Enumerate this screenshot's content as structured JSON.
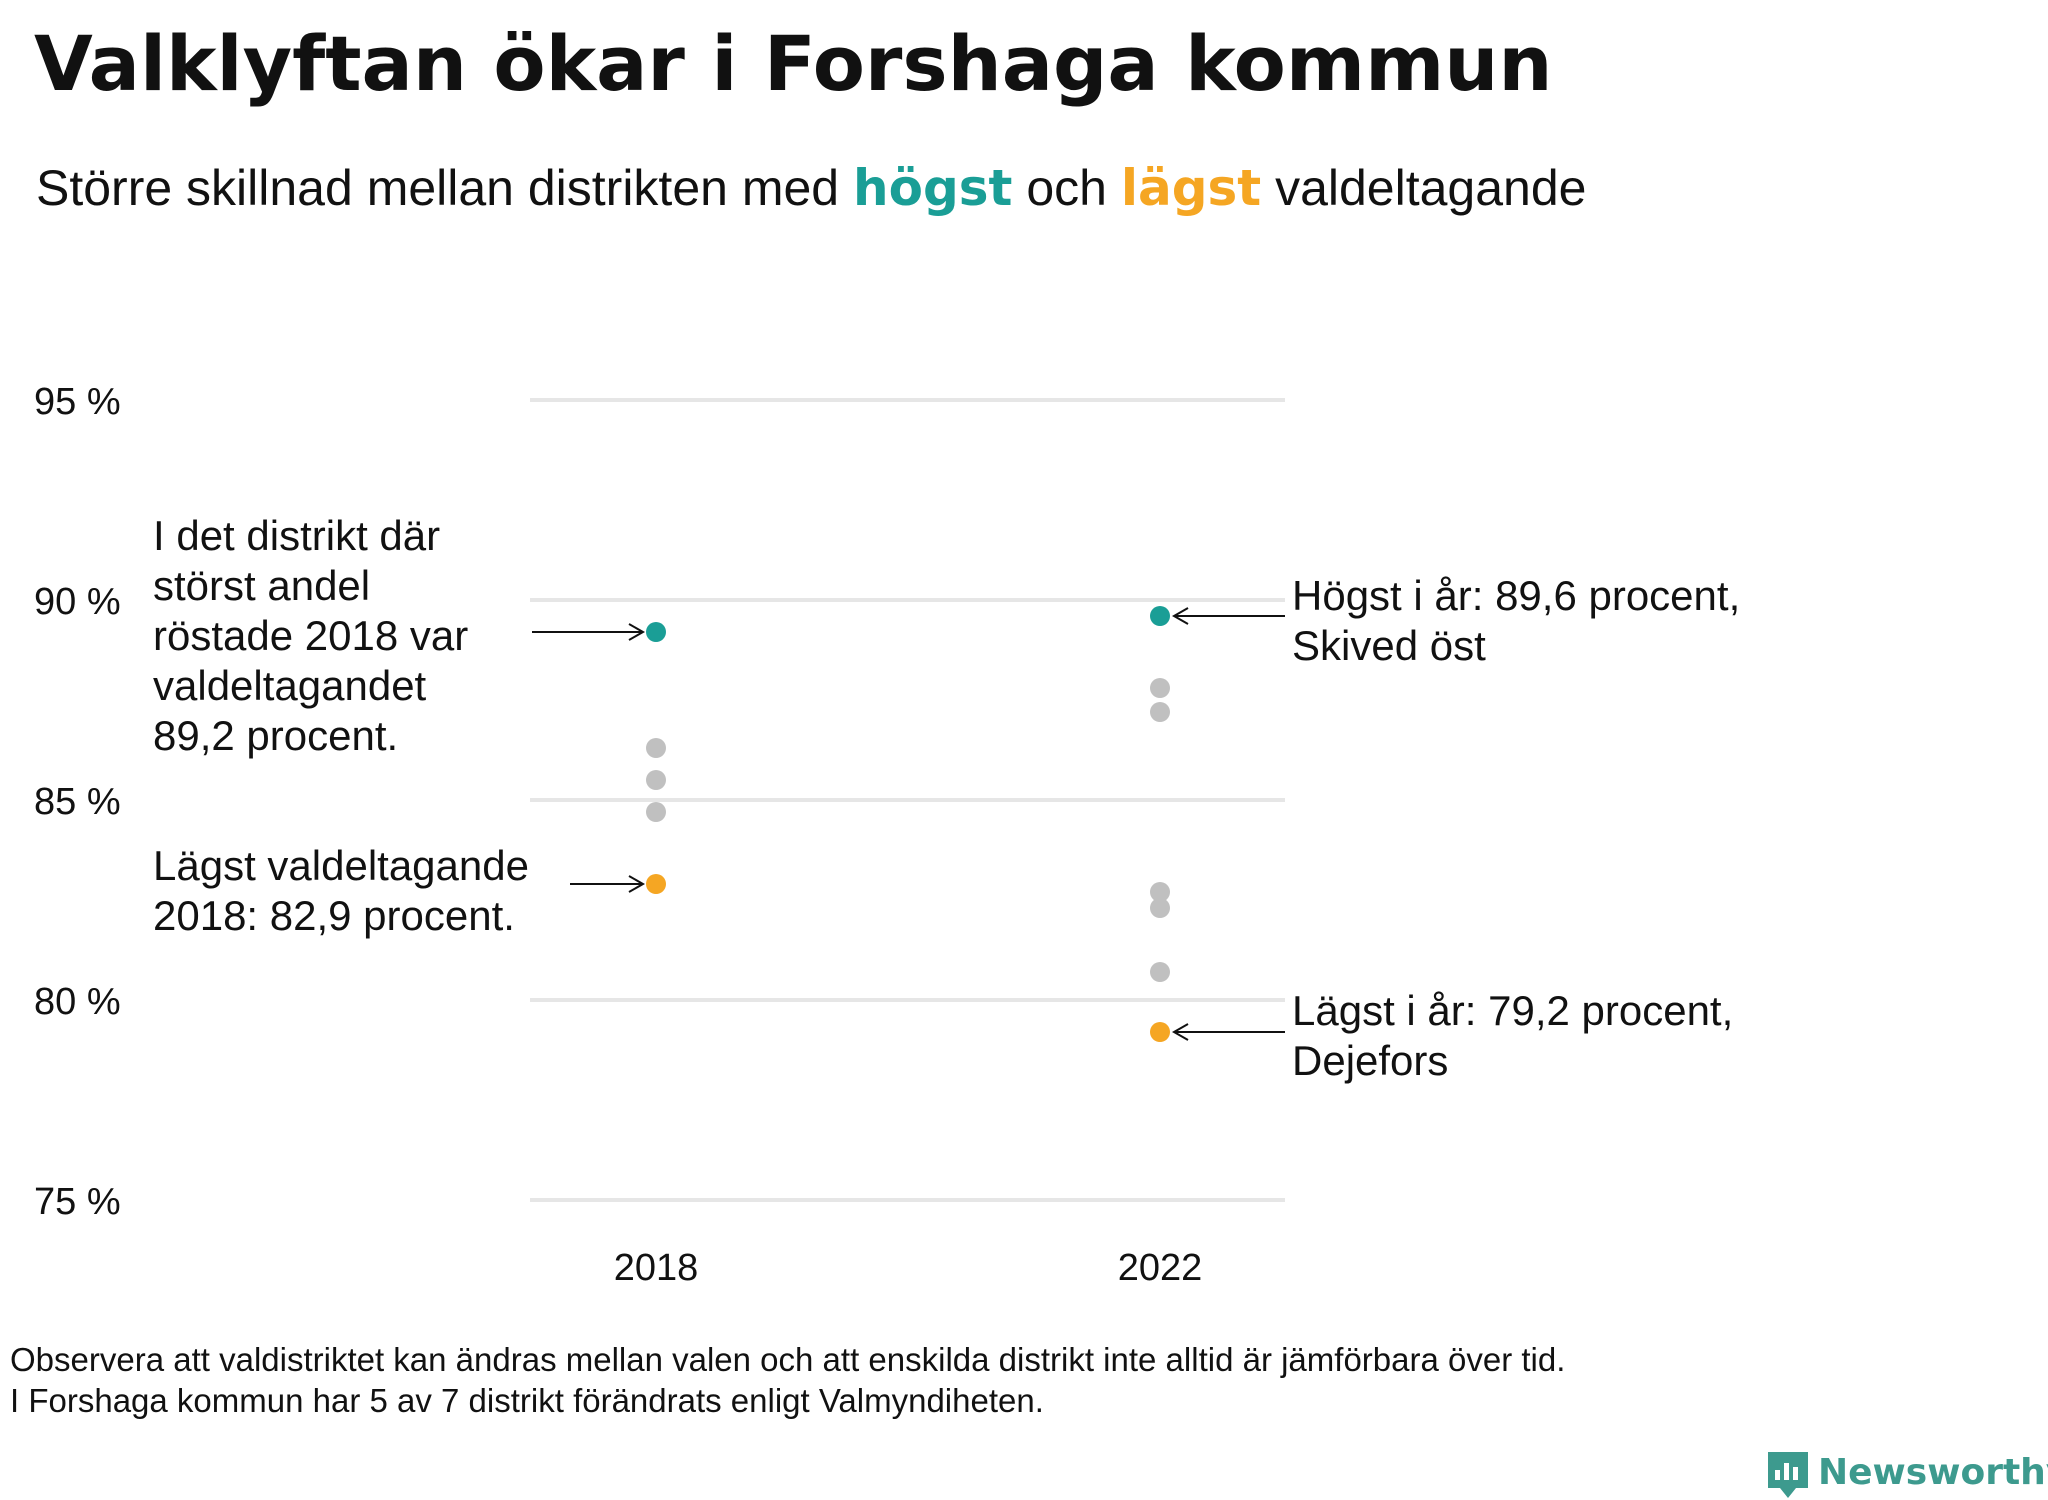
{
  "title": "Valklyftan ökar i Forshaga kommun",
  "subtitle": {
    "part1": "Större skillnad mellan distrikten med ",
    "high_word": "högst",
    "part2": " och ",
    "low_word": "lägst",
    "part3": " valdeltagande"
  },
  "colors": {
    "highest": "#1a9e96",
    "lowest": "#f5a623",
    "other": "#c0c0c0",
    "brand": "#3d9a8e"
  },
  "chart_data": {
    "type": "scatter",
    "title": "Valklyftan ökar i Forshaga kommun",
    "xlabel": "",
    "ylabel": "",
    "categories": [
      "2018",
      "2022"
    ],
    "ylim": [
      75,
      95
    ],
    "yticks": [
      95,
      90,
      85,
      80,
      75
    ],
    "ytick_labels": [
      "95 %",
      "90 %",
      "85 %",
      "80 %",
      "75 %"
    ],
    "grid": true,
    "series": [
      {
        "name": "högst",
        "color_key": "highest",
        "points": [
          {
            "x": "2018",
            "y": 89.2
          },
          {
            "x": "2022",
            "y": 89.6
          }
        ]
      },
      {
        "name": "lägst",
        "color_key": "lowest",
        "points": [
          {
            "x": "2018",
            "y": 82.9
          },
          {
            "x": "2022",
            "y": 79.2
          }
        ]
      },
      {
        "name": "",
        "color_key": "other",
        "points": [
          {
            "x": "2018",
            "y": 86.3
          },
          {
            "x": "2018",
            "y": 85.5
          },
          {
            "x": "2018",
            "y": 84.7
          },
          {
            "x": "2022",
            "y": 87.8
          },
          {
            "x": "2022",
            "y": 87.2
          },
          {
            "x": "2022",
            "y": 82.7
          },
          {
            "x": "2022",
            "y": 82.3
          },
          {
            "x": "2022",
            "y": 80.7
          }
        ]
      }
    ],
    "annotations": [
      {
        "id": "high2018",
        "lines": [
          "I det distrikt där",
          "störst andel",
          "röstade 2018 var",
          "valdeltagandet",
          "89,2 procent."
        ]
      },
      {
        "id": "low2018",
        "lines": [
          "Lägst valdeltagande",
          "2018: 82,9 procent."
        ]
      },
      {
        "id": "high2022",
        "lines": [
          "Högst i år: 89,6 procent,",
          "Skived öst"
        ]
      },
      {
        "id": "low2022",
        "lines": [
          "Lägst i år: 79,2 procent,",
          "Dejefors"
        ]
      }
    ]
  },
  "footnote": {
    "line1": "Observera att valdistriktet kan ändras mellan valen och att enskilda distrikt inte alltid är jämförbara över tid.",
    "line2": "I Forshaga kommun har 5 av 7 distrikt förändrats enligt Valmyndiheten."
  },
  "brand": {
    "name": "Newsworthy",
    "icon": "bar-chart-speech-bubble-icon"
  }
}
